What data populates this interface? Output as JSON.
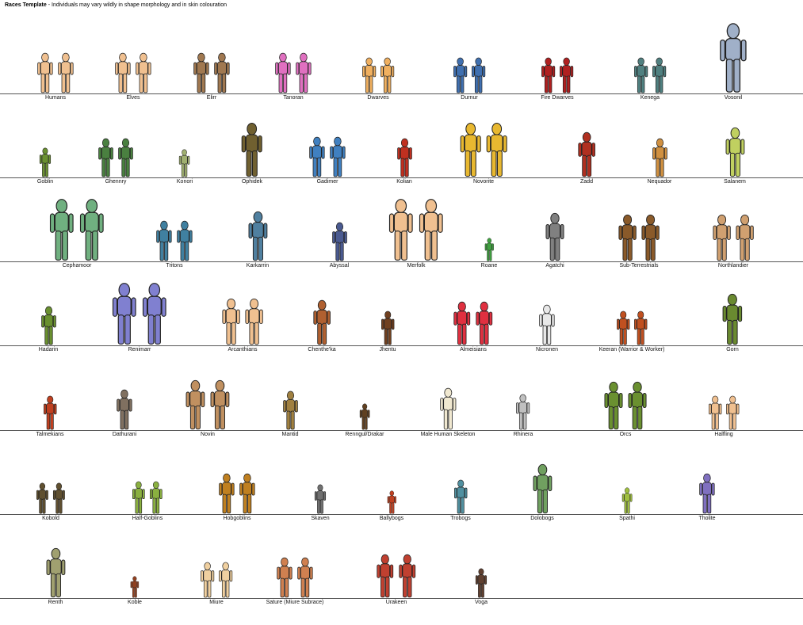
{
  "title": {
    "bold": "Races Template",
    "subtitle": " - Individuals may vary wildly in shape morphology and in skin colouration"
  },
  "rows": [
    [
      {
        "name": "Humans",
        "color": "#f0c090",
        "count": 2
      },
      {
        "name": "Elves",
        "color": "#f0c090",
        "count": 2
      },
      {
        "name": "Elirr",
        "color": "#a07850",
        "count": 2
      },
      {
        "name": "Tanoran",
        "color": "#e070c0",
        "count": 2
      },
      {
        "name": "Dwarves",
        "color": "#f0b060",
        "count": 2
      },
      {
        "name": "Durnur",
        "color": "#4070b0",
        "count": 2
      },
      {
        "name": "Fire Dwarves",
        "color": "#b02020",
        "count": 2
      },
      {
        "name": "Kenega",
        "color": "#508080",
        "count": 2
      },
      {
        "name": "Vosonil",
        "color": "#a0b0c8",
        "count": 1
      }
    ],
    [
      {
        "name": "Goblin",
        "color": "#6a9030",
        "count": 1
      },
      {
        "name": "Ghennry",
        "color": "#4a8040",
        "count": 2
      },
      {
        "name": "Konori",
        "color": "#a0b070",
        "count": 1
      },
      {
        "name": "Ophidek",
        "color": "#706030",
        "count": 1
      },
      {
        "name": "Gadimer",
        "color": "#4080c0",
        "count": 2
      },
      {
        "name": "Kolian",
        "color": "#c03020",
        "count": 1
      },
      {
        "name": "Novorite",
        "color": "#e8b830",
        "count": 2
      },
      {
        "name": "Zadd",
        "color": "#b03020",
        "count": 1
      },
      {
        "name": "Nequador",
        "color": "#d09040",
        "count": 1
      },
      {
        "name": "Salanem",
        "color": "#c0d060",
        "count": 1
      }
    ],
    [
      {
        "name": "Cephamoor",
        "color": "#70b080",
        "count": 2
      },
      {
        "name": "Tritons",
        "color": "#4080a0",
        "count": 2
      },
      {
        "name": "Karkarrin",
        "color": "#5080a0",
        "count": 1
      },
      {
        "name": "Abyssal",
        "color": "#4a5a90",
        "count": 1
      },
      {
        "name": "Merfolk",
        "color": "#f0c090",
        "count": 2
      },
      {
        "name": "Roane",
        "color": "#40a040",
        "count": 1
      },
      {
        "name": "Agatchi",
        "color": "#808080",
        "count": 1
      },
      {
        "name": "Sub-Terrestrials",
        "color": "#8a5a2a",
        "count": 2
      },
      {
        "name": "Northlandier",
        "color": "#d0a070",
        "count": 2
      }
    ],
    [
      {
        "name": "Hadarin",
        "color": "#6a9030",
        "count": 1
      },
      {
        "name": "Renimarr",
        "color": "#8080d0",
        "count": 2
      },
      {
        "name": "Arcanthians",
        "color": "#f0c090",
        "count": 2
      },
      {
        "name": "Chenthe'ka",
        "color": "#b06030",
        "count": 1
      },
      {
        "name": "Jhentu",
        "color": "#704020",
        "count": 1
      },
      {
        "name": "Almeisians",
        "color": "#e03040",
        "count": 2
      },
      {
        "name": "Nicronen",
        "color": "#e8e8e8",
        "count": 1
      },
      {
        "name": "Keeran (Warrior & Worker)",
        "color": "#c05020",
        "count": 2
      },
      {
        "name": "Gorn",
        "color": "#6a8a30",
        "count": 1
      }
    ],
    [
      {
        "name": "Talmekians",
        "color": "#c04020",
        "count": 1
      },
      {
        "name": "Dathurani",
        "color": "#807060",
        "count": 1
      },
      {
        "name": "Novin",
        "color": "#c09060",
        "count": 2
      },
      {
        "name": "Mantid",
        "color": "#a08040",
        "count": 1
      },
      {
        "name": "Renngul/Drakar",
        "color": "#604020",
        "count": 1
      },
      {
        "name": "Male Human Skeleton",
        "color": "#f0e8d0",
        "count": 1
      },
      {
        "name": "Rhinera",
        "color": "#c0c0c0",
        "count": 1
      },
      {
        "name": "Orcs",
        "color": "#6a9030",
        "count": 2
      },
      {
        "name": "Halfling",
        "color": "#f0c090",
        "count": 2
      }
    ],
    [
      {
        "name": "Kobold",
        "color": "#605030",
        "count": 2
      },
      {
        "name": "Half-Goblins",
        "color": "#8ab040",
        "count": 2
      },
      {
        "name": "Hobgoblins",
        "color": "#c08020",
        "count": 2
      },
      {
        "name": "Skaven",
        "color": "#707070",
        "count": 1
      },
      {
        "name": "Ballybogs",
        "color": "#c04020",
        "count": 1
      },
      {
        "name": "Trobogs",
        "color": "#5090a0",
        "count": 1
      },
      {
        "name": "Dolobogs",
        "color": "#70a060",
        "count": 1
      },
      {
        "name": "Spathi",
        "color": "#a0c040",
        "count": 1
      },
      {
        "name": "Tholite",
        "color": "#8070c0",
        "count": 1
      }
    ],
    [
      {
        "name": "Renth",
        "color": "#a0a070",
        "count": 1
      },
      {
        "name": "Koble",
        "color": "#904020",
        "count": 1
      },
      {
        "name": "Miure",
        "color": "#f0d0a0",
        "count": 2
      },
      {
        "name": "Sature (Miure Subrace)",
        "color": "#d08050",
        "count": 2
      },
      {
        "name": "Urakeen",
        "color": "#c04030",
        "count": 2
      },
      {
        "name": "Voga",
        "color": "#604030",
        "count": 1
      }
    ]
  ]
}
